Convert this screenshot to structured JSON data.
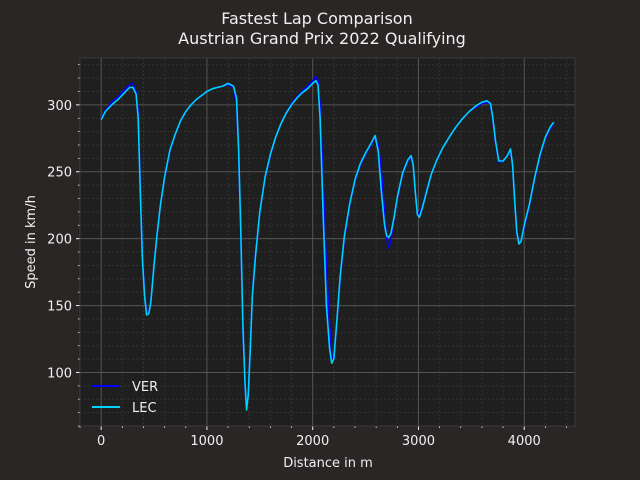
{
  "chart_data": {
    "type": "line",
    "title": "Fastest Lap Comparison",
    "subtitle": "Austrian Grand Prix 2022 Qualifying",
    "xlabel": "Distance in m",
    "ylabel": "Speed in km/h",
    "xlim": [
      -200,
      4480
    ],
    "ylim": [
      60,
      335
    ],
    "xticks": [
      0,
      1000,
      2000,
      3000,
      4000
    ],
    "yticks": [
      100,
      150,
      200,
      250,
      300
    ],
    "grid": true,
    "legend_position": "lower-left",
    "colors": {
      "background": "#292625",
      "plot_area": "#1f1f1f",
      "grid_major": "#555555",
      "grid_minor": "#333333",
      "text": "#f0f0f0"
    },
    "series": [
      {
        "name": "VER",
        "color": "#0000ff",
        "points": [
          [
            0,
            290
          ],
          [
            40,
            296
          ],
          [
            100,
            302
          ],
          [
            160,
            306
          ],
          [
            220,
            311
          ],
          [
            270,
            315
          ],
          [
            300,
            316
          ],
          [
            330,
            310
          ],
          [
            350,
            295
          ],
          [
            370,
            240
          ],
          [
            390,
            190
          ],
          [
            410,
            160
          ],
          [
            430,
            145
          ],
          [
            450,
            145
          ],
          [
            470,
            155
          ],
          [
            500,
            180
          ],
          [
            530,
            205
          ],
          [
            560,
            225
          ],
          [
            600,
            245
          ],
          [
            650,
            265
          ],
          [
            700,
            278
          ],
          [
            750,
            288
          ],
          [
            800,
            295
          ],
          [
            850,
            300
          ],
          [
            900,
            304
          ],
          [
            950,
            307
          ],
          [
            1000,
            310
          ],
          [
            1050,
            312
          ],
          [
            1100,
            313
          ],
          [
            1150,
            314
          ],
          [
            1200,
            315
          ],
          [
            1250,
            313
          ],
          [
            1280,
            300
          ],
          [
            1300,
            260
          ],
          [
            1320,
            200
          ],
          [
            1340,
            130
          ],
          [
            1360,
            90
          ],
          [
            1375,
            73
          ],
          [
            1390,
            85
          ],
          [
            1410,
            120
          ],
          [
            1430,
            160
          ],
          [
            1460,
            190
          ],
          [
            1500,
            220
          ],
          [
            1550,
            245
          ],
          [
            1600,
            262
          ],
          [
            1650,
            276
          ],
          [
            1700,
            286
          ],
          [
            1750,
            294
          ],
          [
            1800,
            301
          ],
          [
            1850,
            306
          ],
          [
            1900,
            310
          ],
          [
            1950,
            314
          ],
          [
            2000,
            318
          ],
          [
            2030,
            321
          ],
          [
            2050,
            318
          ],
          [
            2070,
            300
          ],
          [
            2100,
            240
          ],
          [
            2130,
            180
          ],
          [
            2160,
            135
          ],
          [
            2180,
            112
          ],
          [
            2200,
            110
          ],
          [
            2230,
            140
          ],
          [
            2260,
            170
          ],
          [
            2300,
            200
          ],
          [
            2350,
            225
          ],
          [
            2400,
            243
          ],
          [
            2450,
            255
          ],
          [
            2500,
            263
          ],
          [
            2550,
            270
          ],
          [
            2590,
            276
          ],
          [
            2620,
            270
          ],
          [
            2650,
            250
          ],
          [
            2680,
            220
          ],
          [
            2700,
            200
          ],
          [
            2720,
            193
          ],
          [
            2740,
            200
          ],
          [
            2770,
            215
          ],
          [
            2800,
            230
          ],
          [
            2850,
            248
          ],
          [
            2900,
            258
          ],
          [
            2930,
            260
          ],
          [
            2950,
            255
          ],
          [
            2970,
            235
          ],
          [
            2990,
            220
          ],
          [
            3010,
            218
          ],
          [
            3040,
            225
          ],
          [
            3080,
            237
          ],
          [
            3120,
            248
          ],
          [
            3170,
            258
          ],
          [
            3230,
            268
          ],
          [
            3300,
            277
          ],
          [
            3360,
            284
          ],
          [
            3420,
            290
          ],
          [
            3480,
            295
          ],
          [
            3540,
            298
          ],
          [
            3600,
            301
          ],
          [
            3650,
            302
          ],
          [
            3680,
            300
          ],
          [
            3700,
            290
          ],
          [
            3730,
            270
          ],
          [
            3760,
            257
          ],
          [
            3800,
            258
          ],
          [
            3840,
            262
          ],
          [
            3870,
            265
          ],
          [
            3890,
            255
          ],
          [
            3910,
            230
          ],
          [
            3930,
            205
          ],
          [
            3950,
            197
          ],
          [
            3970,
            198
          ],
          [
            4000,
            208
          ],
          [
            4050,
            225
          ],
          [
            4100,
            245
          ],
          [
            4150,
            262
          ],
          [
            4200,
            275
          ],
          [
            4250,
            283
          ],
          [
            4280,
            286
          ]
        ]
      },
      {
        "name": "LEC",
        "color": "#00d2ff",
        "points": [
          [
            0,
            289
          ],
          [
            40,
            295
          ],
          [
            100,
            300
          ],
          [
            160,
            304
          ],
          [
            220,
            309
          ],
          [
            270,
            313
          ],
          [
            300,
            313
          ],
          [
            330,
            308
          ],
          [
            350,
            290
          ],
          [
            370,
            235
          ],
          [
            390,
            185
          ],
          [
            410,
            158
          ],
          [
            430,
            143
          ],
          [
            450,
            144
          ],
          [
            470,
            153
          ],
          [
            500,
            180
          ],
          [
            530,
            204
          ],
          [
            560,
            225
          ],
          [
            600,
            246
          ],
          [
            650,
            266
          ],
          [
            700,
            278
          ],
          [
            750,
            288
          ],
          [
            800,
            295
          ],
          [
            850,
            300
          ],
          [
            900,
            304
          ],
          [
            950,
            307
          ],
          [
            1000,
            310
          ],
          [
            1050,
            312
          ],
          [
            1100,
            313
          ],
          [
            1150,
            314
          ],
          [
            1200,
            316
          ],
          [
            1250,
            314
          ],
          [
            1280,
            305
          ],
          [
            1300,
            265
          ],
          [
            1320,
            205
          ],
          [
            1340,
            135
          ],
          [
            1360,
            92
          ],
          [
            1375,
            72
          ],
          [
            1390,
            83
          ],
          [
            1410,
            118
          ],
          [
            1430,
            158
          ],
          [
            1460,
            188
          ],
          [
            1500,
            220
          ],
          [
            1550,
            246
          ],
          [
            1600,
            263
          ],
          [
            1650,
            276
          ],
          [
            1700,
            286
          ],
          [
            1750,
            294
          ],
          [
            1800,
            300
          ],
          [
            1850,
            305
          ],
          [
            1900,
            309
          ],
          [
            1950,
            312
          ],
          [
            2000,
            316
          ],
          [
            2030,
            318
          ],
          [
            2050,
            315
          ],
          [
            2070,
            290
          ],
          [
            2100,
            215
          ],
          [
            2130,
            150
          ],
          [
            2160,
            118
          ],
          [
            2180,
            107
          ],
          [
            2200,
            110
          ],
          [
            2230,
            140
          ],
          [
            2260,
            172
          ],
          [
            2300,
            202
          ],
          [
            2350,
            226
          ],
          [
            2400,
            244
          ],
          [
            2450,
            256
          ],
          [
            2500,
            264
          ],
          [
            2550,
            271
          ],
          [
            2590,
            277
          ],
          [
            2620,
            265
          ],
          [
            2650,
            235
          ],
          [
            2680,
            210
          ],
          [
            2700,
            202
          ],
          [
            2720,
            201
          ],
          [
            2740,
            204
          ],
          [
            2770,
            216
          ],
          [
            2800,
            231
          ],
          [
            2850,
            249
          ],
          [
            2900,
            259
          ],
          [
            2930,
            262
          ],
          [
            2950,
            255
          ],
          [
            2970,
            235
          ],
          [
            2990,
            218
          ],
          [
            3010,
            216
          ],
          [
            3040,
            224
          ],
          [
            3080,
            236
          ],
          [
            3120,
            248
          ],
          [
            3170,
            258
          ],
          [
            3230,
            268
          ],
          [
            3300,
            277
          ],
          [
            3360,
            284
          ],
          [
            3420,
            290
          ],
          [
            3480,
            295
          ],
          [
            3540,
            299
          ],
          [
            3600,
            302
          ],
          [
            3650,
            303
          ],
          [
            3680,
            301
          ],
          [
            3700,
            292
          ],
          [
            3730,
            272
          ],
          [
            3760,
            258
          ],
          [
            3800,
            258
          ],
          [
            3840,
            262
          ],
          [
            3870,
            267
          ],
          [
            3890,
            255
          ],
          [
            3910,
            228
          ],
          [
            3930,
            205
          ],
          [
            3950,
            196
          ],
          [
            3970,
            198
          ],
          [
            4000,
            210
          ],
          [
            4050,
            226
          ],
          [
            4100,
            246
          ],
          [
            4150,
            263
          ],
          [
            4200,
            276
          ],
          [
            4250,
            284
          ],
          [
            4280,
            287
          ]
        ]
      }
    ]
  }
}
